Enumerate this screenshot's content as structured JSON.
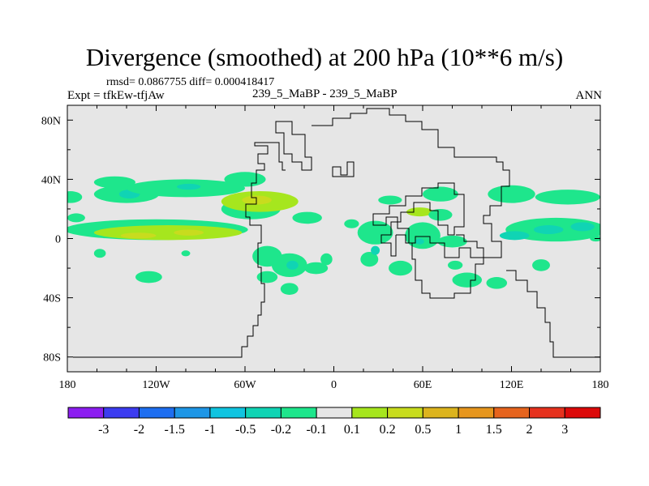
{
  "header": {
    "title": "Divergence (smoothed) at 200 hPa (10**6 m/s)",
    "stats": "rmsd= 0.0867755 diff= 0.000418417",
    "expt": "Expt = tfkEw-tfjAw",
    "cases": "239_5_MaBP - 239_5_MaBP",
    "season": "ANN"
  },
  "chart_data": {
    "type": "heatmap",
    "title": "Divergence (smoothed) at 200 hPa (10**6 m/s)",
    "xlabel": "",
    "ylabel": "",
    "xlim": [
      -180,
      180
    ],
    "ylim": [
      -90,
      90
    ],
    "x_ticks": [
      {
        "value": -180,
        "label": "180"
      },
      {
        "value": -120,
        "label": "120W"
      },
      {
        "value": -60,
        "label": "60W"
      },
      {
        "value": 0,
        "label": "0"
      },
      {
        "value": 60,
        "label": "60E"
      },
      {
        "value": 120,
        "label": "120E"
      },
      {
        "value": 180,
        "label": "180"
      }
    ],
    "y_ticks": [
      {
        "value": 80,
        "label": "80N"
      },
      {
        "value": 40,
        "label": "40N"
      },
      {
        "value": 0,
        "label": "0"
      },
      {
        "value": -40,
        "label": "40S"
      },
      {
        "value": -80,
        "label": "80S"
      }
    ],
    "background_color": "#e6e6e6",
    "colorbar": {
      "placement": "bottom",
      "labels": [
        "-3",
        "-2",
        "-1.5",
        "-1",
        "-0.5",
        "-0.2",
        "-0.1",
        "0.1",
        "0.2",
        "0.5",
        "1",
        "1.5",
        "2",
        "3"
      ],
      "colors": [
        "#8c1ef0",
        "#3c3cf0",
        "#1e6ef0",
        "#1e96e6",
        "#10c4e0",
        "#10d4b4",
        "#1ee68c",
        "#e6e6e6",
        "#a6e61e",
        "#c8dc1e",
        "#dcb41e",
        "#e6961e",
        "#e6641e",
        "#e6321e",
        "#dc0a0a"
      ]
    },
    "regions": [
      {
        "level": "-0.1",
        "lon": -178,
        "lat": 28,
        "rx": 8,
        "ry": 4
      },
      {
        "level": "-0.1",
        "lon": -174,
        "lat": 14,
        "rx": 6,
        "ry": 3
      },
      {
        "level": "-0.1",
        "lon": -148,
        "lat": 38,
        "rx": 14,
        "ry": 4
      },
      {
        "level": "-0.1",
        "lon": -140,
        "lat": 30,
        "rx": 22,
        "ry": 6
      },
      {
        "level": "-0.2",
        "lon": -138,
        "lat": 30,
        "rx": 7,
        "ry": 3
      },
      {
        "level": "-0.1",
        "lon": -100,
        "lat": 34,
        "rx": 40,
        "ry": 6
      },
      {
        "level": "-0.2",
        "lon": -98,
        "lat": 35,
        "rx": 8,
        "ry": 2
      },
      {
        "level": "-0.1",
        "lon": -60,
        "lat": 40,
        "rx": 14,
        "ry": 5
      },
      {
        "level": "-0.1",
        "lon": -120,
        "lat": 6,
        "rx": 62,
        "ry": 7
      },
      {
        "level": "0.1",
        "lon": -112,
        "lat": 4,
        "rx": 50,
        "ry": 5
      },
      {
        "level": "0.2",
        "lon": -132,
        "lat": 2,
        "rx": 12,
        "ry": 2
      },
      {
        "level": "0.2",
        "lon": -98,
        "lat": 4,
        "rx": 10,
        "ry": 2
      },
      {
        "level": "-0.1",
        "lon": -158,
        "lat": -10,
        "rx": 4,
        "ry": 3
      },
      {
        "level": "-0.1",
        "lon": -125,
        "lat": -26,
        "rx": 9,
        "ry": 4
      },
      {
        "level": "-0.1",
        "lon": -100,
        "lat": -10,
        "rx": 3,
        "ry": 2
      },
      {
        "level": "-0.1",
        "lon": -56,
        "lat": 20,
        "rx": 20,
        "ry": 7
      },
      {
        "level": "0.1",
        "lon": -50,
        "lat": 25,
        "rx": 26,
        "ry": 7
      },
      {
        "level": "0.2",
        "lon": -52,
        "lat": 26,
        "rx": 10,
        "ry": 3
      },
      {
        "level": "-0.1",
        "lon": -18,
        "lat": 14,
        "rx": 10,
        "ry": 4
      },
      {
        "level": "-0.1",
        "lon": -45,
        "lat": -12,
        "rx": 10,
        "ry": 7
      },
      {
        "level": "-0.1",
        "lon": -30,
        "lat": -18,
        "rx": 12,
        "ry": 8
      },
      {
        "level": "-0.2",
        "lon": -28,
        "lat": -18,
        "rx": 4,
        "ry": 3
      },
      {
        "level": "-0.1",
        "lon": -45,
        "lat": -26,
        "rx": 7,
        "ry": 4
      },
      {
        "level": "-0.1",
        "lon": -5,
        "lat": -14,
        "rx": 4,
        "ry": 4
      },
      {
        "level": "-0.1",
        "lon": -12,
        "lat": -20,
        "rx": 8,
        "ry": 4
      },
      {
        "level": "-0.1",
        "lon": -30,
        "lat": -34,
        "rx": 6,
        "ry": 4
      },
      {
        "level": "-0.1",
        "lon": 12,
        "lat": 10,
        "rx": 5,
        "ry": 3
      },
      {
        "level": "-0.1",
        "lon": 28,
        "lat": 4,
        "rx": 12,
        "ry": 8
      },
      {
        "level": "-0.1",
        "lon": 24,
        "lat": -14,
        "rx": 6,
        "ry": 5
      },
      {
        "level": "-0.2",
        "lon": 28,
        "lat": -8,
        "rx": 3,
        "ry": 3
      },
      {
        "level": "-0.1",
        "lon": 45,
        "lat": -20,
        "rx": 8,
        "ry": 5
      },
      {
        "level": "-0.1",
        "lon": 38,
        "lat": 26,
        "rx": 8,
        "ry": 3
      },
      {
        "level": "0.1",
        "lon": 58,
        "lat": 18,
        "rx": 9,
        "ry": 3
      },
      {
        "level": "-0.1",
        "lon": 72,
        "lat": 30,
        "rx": 12,
        "ry": 5
      },
      {
        "level": "-0.1",
        "lon": 72,
        "lat": 16,
        "rx": 8,
        "ry": 4
      },
      {
        "level": "-0.1",
        "lon": 60,
        "lat": 2,
        "rx": 12,
        "ry": 9
      },
      {
        "level": "-0.2",
        "lon": 58,
        "lat": -2,
        "rx": 3,
        "ry": 2
      },
      {
        "level": "-0.1",
        "lon": 80,
        "lat": -2,
        "rx": 10,
        "ry": 4
      },
      {
        "level": "-0.1",
        "lon": 90,
        "lat": -28,
        "rx": 10,
        "ry": 5
      },
      {
        "level": "-0.1",
        "lon": 110,
        "lat": -30,
        "rx": 7,
        "ry": 4
      },
      {
        "level": "-0.1",
        "lon": 82,
        "lat": -18,
        "rx": 5,
        "ry": 3
      },
      {
        "level": "-0.1",
        "lon": 120,
        "lat": 30,
        "rx": 16,
        "ry": 6
      },
      {
        "level": "-0.1",
        "lon": 158,
        "lat": 28,
        "rx": 22,
        "ry": 5
      },
      {
        "level": "-0.1",
        "lon": 150,
        "lat": 6,
        "rx": 34,
        "ry": 8
      },
      {
        "level": "-0.2",
        "lon": 122,
        "lat": 2,
        "rx": 10,
        "ry": 3
      },
      {
        "level": "-0.2",
        "lon": 145,
        "lat": 6,
        "rx": 10,
        "ry": 3
      },
      {
        "level": "-0.2",
        "lon": 168,
        "lat": 8,
        "rx": 8,
        "ry": 3
      },
      {
        "level": "-0.1",
        "lon": 140,
        "lat": -18,
        "rx": 6,
        "ry": 4
      },
      {
        "level": "-0.1",
        "lon": 177,
        "lat": 0,
        "rx": 4,
        "ry": 2
      }
    ]
  }
}
